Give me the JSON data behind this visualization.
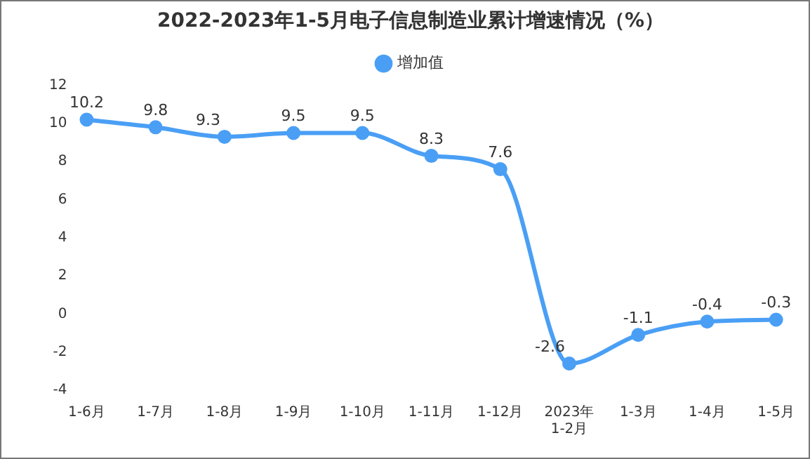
{
  "chart_data": {
    "type": "line",
    "title": "2022-2023年1-5月电子信息制造业累计增速情况（%）",
    "categories": [
      "1-6月",
      "1-7月",
      "1-8月",
      "1-9月",
      "1-10月",
      "1-11月",
      "1-12月",
      "2023年\n1-2月",
      "1-3月",
      "1-4月",
      "1-5月"
    ],
    "series": [
      {
        "name": "增加值",
        "color": "#4a9ff5",
        "values": [
          10.2,
          9.8,
          9.3,
          9.5,
          9.5,
          8.3,
          7.6,
          -2.6,
          -1.1,
          -0.4,
          -0.3
        ]
      }
    ],
    "ylim": [
      -4,
      12
    ],
    "yticks": [
      -4,
      -2,
      0,
      2,
      4,
      6,
      8,
      10,
      12
    ],
    "grid": false,
    "legend": "top",
    "marker": "circle",
    "line_style": "solid",
    "data_labels": true
  }
}
